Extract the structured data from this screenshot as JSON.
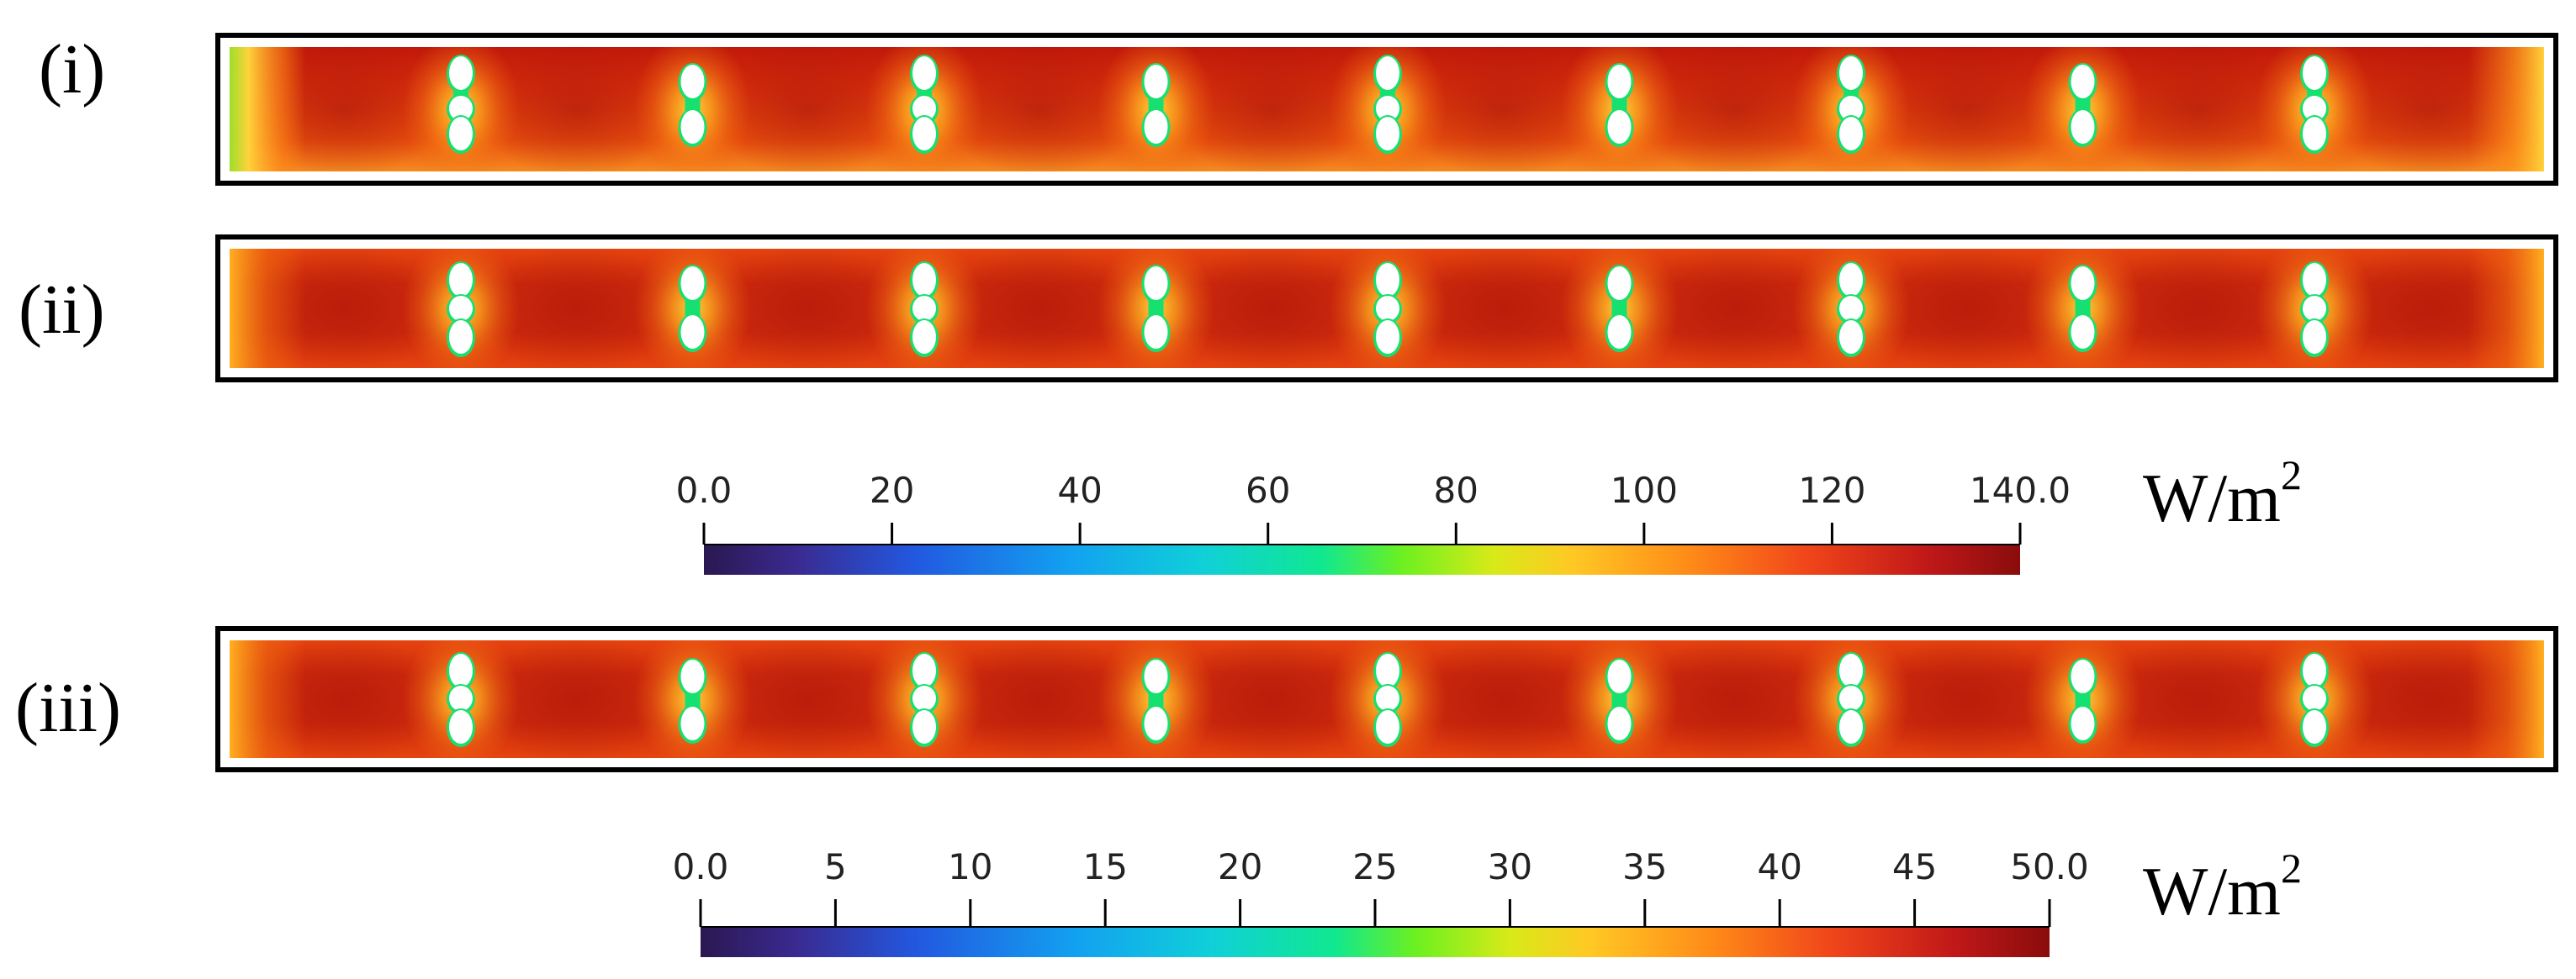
{
  "panels": [
    {
      "label": "(i)",
      "heat_sources": 9
    },
    {
      "label": "(ii)",
      "heat_sources": 9
    },
    {
      "label": "(iii)",
      "heat_sources": 9
    }
  ],
  "colorbars": [
    {
      "ticks": [
        "0.0",
        "20",
        "40",
        "60",
        "80",
        "100",
        "120",
        "140.0"
      ],
      "min": 0,
      "max": 140,
      "unit": "W/m",
      "unit_sup": "2"
    },
    {
      "ticks": [
        "0.0",
        "5",
        "10",
        "15",
        "20",
        "25",
        "30",
        "35",
        "40",
        "45",
        "50.0"
      ],
      "min": 0,
      "max": 50,
      "unit": "W/m",
      "unit_sup": "2"
    }
  ],
  "colors": {
    "field_dark_red": "#c41a0a",
    "field_red": "#e23a0c",
    "field_orange": "#f06a10",
    "edge_yellow": "#ffd23a",
    "edge_green": "#9be02a",
    "hole_green": "#16e070",
    "frame": "#000000"
  }
}
